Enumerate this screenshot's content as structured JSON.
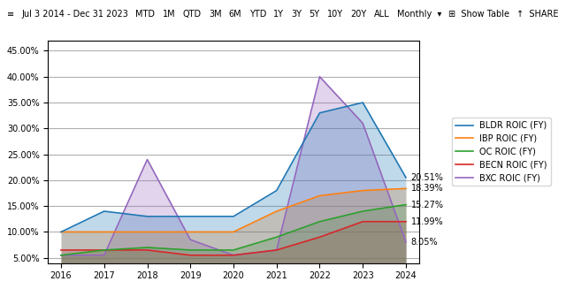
{
  "chart_data": {
    "type": "area",
    "x": [
      2016,
      2017,
      2018,
      2019,
      2020,
      2021,
      2022,
      2023,
      2024
    ],
    "xlim": [
      2015.7,
      2024.3
    ],
    "xticks": [
      2016,
      2017,
      2018,
      2019,
      2020,
      2021,
      2022,
      2023,
      2024
    ],
    "ylim": [
      0.04,
      0.47
    ],
    "yticks": [
      {
        "value": 0.05,
        "label": "5.00%"
      },
      {
        "value": 0.1,
        "label": "10.00%"
      },
      {
        "value": 0.15,
        "label": "15.00%"
      },
      {
        "value": 0.2,
        "label": "20.00%"
      },
      {
        "value": 0.25,
        "label": "25.00%"
      },
      {
        "value": 0.3,
        "label": "30.00%"
      },
      {
        "value": 0.35,
        "label": "35.00%"
      },
      {
        "value": 0.4,
        "label": "40.00%"
      },
      {
        "value": 0.45,
        "label": "45.00%"
      }
    ],
    "grid": "y",
    "legend": "right",
    "series": [
      {
        "name": "BLDR ROIC (FY)",
        "values": [
          0.1,
          0.14,
          0.13,
          0.13,
          0.13,
          0.18,
          0.33,
          0.35,
          0.2051
        ]
      },
      {
        "name": "IBP ROIC (FY)",
        "values": [
          0.1,
          0.1,
          0.1,
          0.1,
          0.1,
          0.14,
          0.17,
          0.18,
          0.1839
        ]
      },
      {
        "name": "OC ROIC (FY)",
        "values": [
          0.055,
          0.065,
          0.07,
          0.065,
          0.065,
          0.09,
          0.12,
          0.14,
          0.1527
        ]
      },
      {
        "name": "BECN ROIC (FY)",
        "values": [
          0.065,
          0.065,
          0.065,
          0.055,
          0.055,
          0.065,
          0.09,
          0.12,
          0.1199
        ]
      },
      {
        "name": "BXC ROIC (FY)",
        "values": [
          0.055,
          0.055,
          0.24,
          0.085,
          0.055,
          0.065,
          0.4,
          0.31,
          0.0805
        ]
      }
    ],
    "annotations": [
      "≡",
      "Jul 3 2014 - Dec 31 2023",
      "MTD",
      "1M",
      "QTD",
      "3M",
      "6M",
      "YTD",
      "1Y",
      "3Y",
      "5Y",
      "10Y",
      "20Y",
      "ALL",
      "Monthly  ▾",
      "⊞  Show Table",
      "↑  SHARE",
      {
        "text": "20.51%",
        "x": 2024,
        "y": 0.2051
      },
      {
        "text": "18.39%",
        "x": 2024,
        "y": 0.1839
      },
      {
        "text": "15.27%",
        "x": 2024,
        "y": 0.1527
      },
      {
        "text": "11.99%",
        "x": 2024,
        "y": 0.1199
      },
      {
        "text": "8.05%",
        "x": 2024,
        "y": 0.0805
      }
    ]
  }
}
